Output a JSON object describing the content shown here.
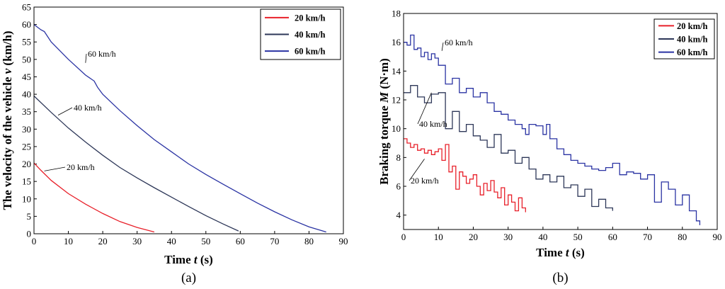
{
  "colors": {
    "s20": "#e8202a",
    "s40": "#2d3758",
    "s60": "#2a33a3",
    "axis": "#000000"
  },
  "chart_data": [
    {
      "type": "line",
      "caption": "(a)",
      "xlabel_main": "Time ",
      "xlabel_var": "t",
      "xlabel_unit": " (s)",
      "ylabel_main": "The velocity of the vehicle ",
      "ylabel_var": "v",
      "ylabel_unit": " (km/h)",
      "xlim": [
        0,
        90
      ],
      "ylim": [
        0,
        65
      ],
      "xticks": [
        "0",
        "10",
        "20",
        "30",
        "40",
        "50",
        "60",
        "70",
        "80",
        "90"
      ],
      "yticks": [
        "0",
        "5",
        "10",
        "15",
        "20",
        "25",
        "30",
        "35",
        "40",
        "45",
        "50",
        "55",
        "60",
        "65"
      ],
      "legend": [
        "20 km/h",
        "40 km/h",
        "60 km/h"
      ],
      "legend_position": "top-right",
      "annotations": [
        {
          "text": "20 km/h",
          "target": [
            3,
            18
          ]
        },
        {
          "text": "40 km/h",
          "target": [
            7,
            34
          ]
        },
        {
          "text": "60 km/h",
          "target": [
            15,
            49
          ]
        }
      ],
      "series": [
        {
          "name": "20 km/h",
          "color_key": "s20",
          "x": [
            0,
            2,
            5,
            10,
            15,
            20,
            25,
            30,
            35
          ],
          "y": [
            20.3,
            18.2,
            15.3,
            11.5,
            8.5,
            5.8,
            3.5,
            1.8,
            0.5
          ]
        },
        {
          "name": "40 km/h",
          "color_key": "s40",
          "x": [
            0,
            5,
            10,
            15,
            20,
            25,
            30,
            35,
            40,
            45,
            50,
            55,
            59.5
          ],
          "y": [
            39.5,
            34.8,
            30.3,
            26.3,
            22.5,
            19,
            16,
            13.2,
            10.5,
            7.8,
            5.2,
            2.8,
            0.8
          ]
        },
        {
          "name": "60 km/h",
          "color_key": "s60",
          "x": [
            0,
            2,
            3,
            5,
            10,
            15,
            17.5,
            18.5,
            20,
            25,
            30,
            35,
            40,
            45,
            50,
            55,
            60,
            65,
            70,
            75,
            80,
            85
          ],
          "y": [
            60,
            58.5,
            58,
            55,
            50,
            45.5,
            43.8,
            42,
            40,
            35.3,
            31,
            27,
            23.5,
            20,
            17,
            14.2,
            11.5,
            8.8,
            6.3,
            4,
            2,
            0.5
          ]
        }
      ]
    },
    {
      "type": "line",
      "caption": "(b)",
      "xlabel_main": "Time ",
      "xlabel_var": "t",
      "xlabel_unit": " (s)",
      "ylabel_main": "Braking torque ",
      "ylabel_var": "M",
      "ylabel_unit": " (N·m)",
      "xlim": [
        0,
        90
      ],
      "ylim": [
        3,
        18
      ],
      "xticks": [
        "0",
        "10",
        "20",
        "30",
        "40",
        "50",
        "60",
        "70",
        "80",
        "90"
      ],
      "yticks": [
        "4",
        "6",
        "8",
        "10",
        "12",
        "14",
        "16",
        "18"
      ],
      "legend": [
        "20 km/h",
        "40 km/h",
        "60 km/h"
      ],
      "legend_position": "top-right",
      "annotations": [
        {
          "text": "20 km/h",
          "target": [
            6,
            7.9
          ]
        },
        {
          "text": "40 km/h",
          "target": [
            8,
            12.5
          ]
        },
        {
          "text": "60 km/h",
          "target": [
            11,
            15.4
          ]
        }
      ],
      "series": [
        {
          "name": "20 km/h",
          "color_key": "s20",
          "x": [
            0,
            1,
            2,
            3,
            4,
            5,
            6,
            7,
            8,
            9,
            10,
            11,
            12,
            13,
            14,
            15,
            16,
            17,
            18,
            19,
            20,
            21,
            22,
            23,
            24,
            25,
            26,
            27,
            28,
            29,
            30,
            31,
            32,
            33,
            34,
            35
          ],
          "y": [
            9.3,
            9,
            8.7,
            8.9,
            8.5,
            8.6,
            8.3,
            8.5,
            8.2,
            8.4,
            8.6,
            7.8,
            8.9,
            7,
            7.4,
            5.8,
            7,
            6.7,
            6.2,
            6.5,
            6.8,
            6,
            5.4,
            6.2,
            5.7,
            6.4,
            5.6,
            5.2,
            5.9,
            4.7,
            5.4,
            4.9,
            4.3,
            5.2,
            4.5,
            4.2
          ]
        },
        {
          "name": "40 km/h",
          "color_key": "s40",
          "x": [
            0,
            2,
            4,
            6,
            8,
            10,
            12,
            14,
            16,
            18,
            20,
            22,
            24,
            26,
            28,
            30,
            32,
            34,
            36,
            38,
            40,
            42,
            44,
            46,
            48,
            50,
            52,
            54,
            56,
            58,
            60
          ],
          "y": [
            12.5,
            13,
            12.2,
            11.8,
            12.4,
            12.5,
            10,
            11.2,
            9.8,
            10.3,
            9.5,
            9.2,
            8.7,
            9.6,
            8.3,
            8.5,
            7.6,
            8,
            7.2,
            6.5,
            6.8,
            6.3,
            6.7,
            5.9,
            6.1,
            5.3,
            5.8,
            4.6,
            5.1,
            4.5,
            4.3
          ]
        },
        {
          "name": "60 km/h",
          "color_key": "s60",
          "x": [
            0,
            1,
            2,
            3,
            4,
            5,
            6,
            7,
            8,
            9,
            10,
            12,
            14,
            16,
            18,
            20,
            22,
            24,
            26,
            28,
            30,
            32,
            34,
            35,
            36,
            38,
            40,
            41,
            42,
            44,
            46,
            48,
            50,
            52,
            54,
            56,
            58,
            60,
            62,
            64,
            66,
            68,
            70,
            72,
            74,
            76,
            78,
            80,
            82,
            84,
            85
          ],
          "y": [
            16,
            15.8,
            16.5,
            15.5,
            15.6,
            15,
            15.3,
            14.8,
            15.2,
            14.9,
            14.4,
            13.1,
            13.5,
            12.5,
            12.8,
            12.2,
            12.5,
            11.8,
            11.2,
            11,
            10.6,
            10.3,
            10,
            9.6,
            10.3,
            10.2,
            9.6,
            10.3,
            9.3,
            8.6,
            8.2,
            7.8,
            7.6,
            7.4,
            7.2,
            7.1,
            7.3,
            7.6,
            6.8,
            7,
            6.9,
            6.5,
            6.8,
            4.9,
            6.3,
            5.8,
            4.7,
            5.4,
            4.3,
            3.6,
            3.3
          ]
        }
      ]
    }
  ]
}
